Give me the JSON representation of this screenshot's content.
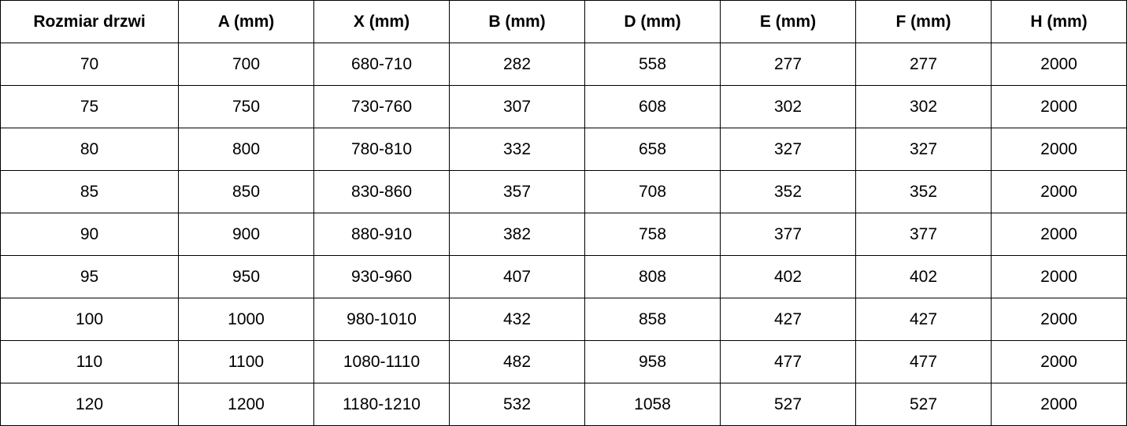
{
  "table": {
    "headers": [
      "Rozmiar drzwi",
      "A (mm)",
      "X (mm)",
      "B (mm)",
      "D (mm)",
      "E (mm)",
      "F (mm)",
      "H (mm)"
    ],
    "rows": [
      [
        "70",
        "700",
        "680-710",
        "282",
        "558",
        "277",
        "277",
        "2000"
      ],
      [
        "75",
        "750",
        "730-760",
        "307",
        "608",
        "302",
        "302",
        "2000"
      ],
      [
        "80",
        "800",
        "780-810",
        "332",
        "658",
        "327",
        "327",
        "2000"
      ],
      [
        "85",
        "850",
        "830-860",
        "357",
        "708",
        "352",
        "352",
        "2000"
      ],
      [
        "90",
        "900",
        "880-910",
        "382",
        "758",
        "377",
        "377",
        "2000"
      ],
      [
        "95",
        "950",
        "930-960",
        "407",
        "808",
        "402",
        "402",
        "2000"
      ],
      [
        "100",
        "1000",
        "980-1010",
        "432",
        "858",
        "427",
        "427",
        "2000"
      ],
      [
        "110",
        "1100",
        "1080-1110",
        "482",
        "958",
        "477",
        "477",
        "2000"
      ],
      [
        "120",
        "1200",
        "1180-1210",
        "532",
        "1058",
        "527",
        "527",
        "2000"
      ]
    ]
  }
}
